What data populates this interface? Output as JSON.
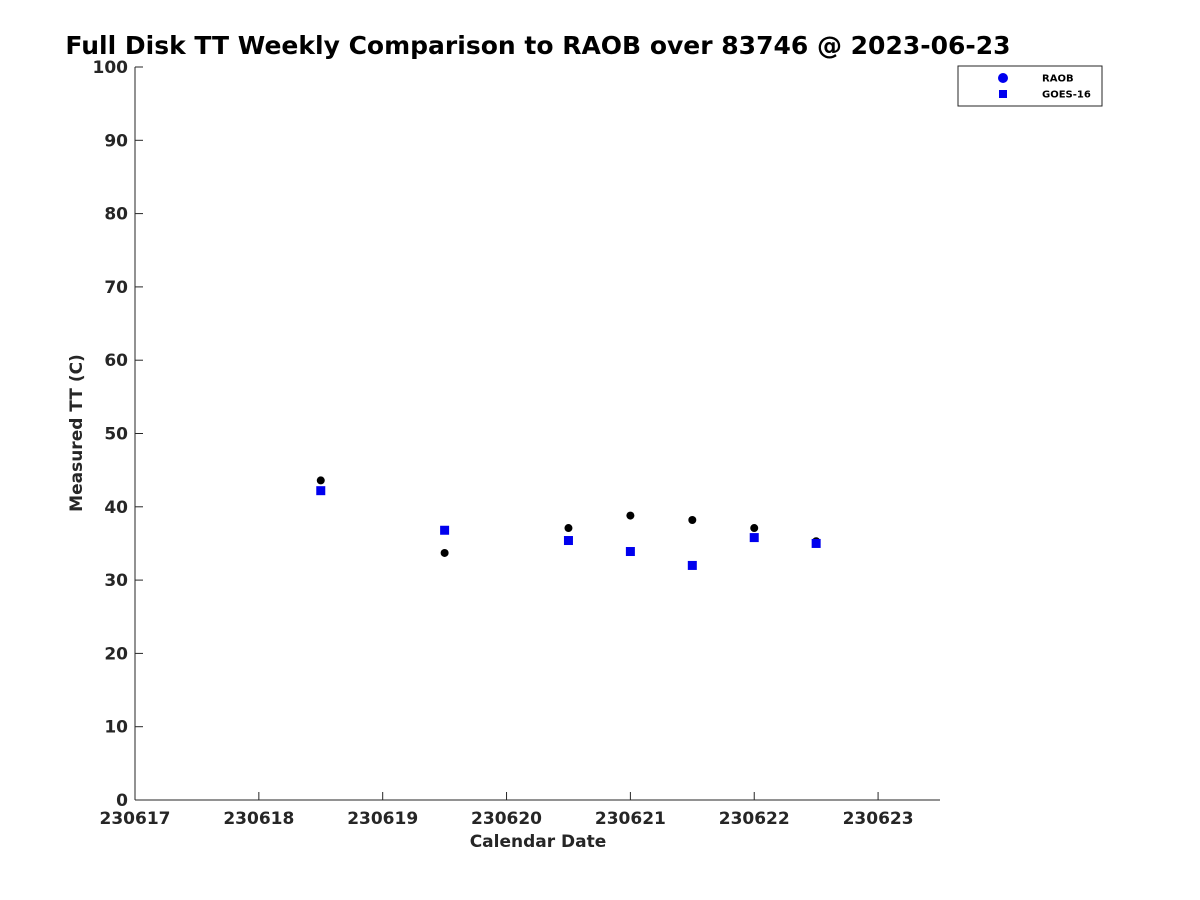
{
  "chart_data": {
    "type": "scatter",
    "title": "Full Disk TT Weekly Comparison to RAOB over 83746 @ 2023-06-23",
    "xlabel": "Calendar Date",
    "ylabel": "Measured TT (C)",
    "xlim": [
      "2023-06-17",
      "2023-06-23 12:00"
    ],
    "ylim": [
      0,
      100
    ],
    "x_ticks": [
      {
        "x": "2023-06-17",
        "label": "230617"
      },
      {
        "x": "2023-06-18",
        "label": "230618"
      },
      {
        "x": "2023-06-19",
        "label": "230619"
      },
      {
        "x": "2023-06-20",
        "label": "230620"
      },
      {
        "x": "2023-06-21",
        "label": "230621"
      },
      {
        "x": "2023-06-22",
        "label": "230622"
      },
      {
        "x": "2023-06-23",
        "label": "230623"
      }
    ],
    "y_ticks": [
      0,
      10,
      20,
      30,
      40,
      50,
      60,
      70,
      80,
      90,
      100
    ],
    "grid": false,
    "legend_position": "top-right",
    "series": [
      {
        "name": "RAOB",
        "marker": "circle",
        "color": "#000000",
        "legend_color": "#0000ee",
        "points": [
          {
            "x": "2023-06-18 12:00",
            "y": 43.6
          },
          {
            "x": "2023-06-19 12:00",
            "y": 33.7
          },
          {
            "x": "2023-06-20 12:00",
            "y": 37.1
          },
          {
            "x": "2023-06-21 00:00",
            "y": 38.8
          },
          {
            "x": "2023-06-21 12:00",
            "y": 38.2
          },
          {
            "x": "2023-06-22 00:00",
            "y": 37.1
          },
          {
            "x": "2023-06-22 12:00",
            "y": 35.3
          }
        ]
      },
      {
        "name": "GOES-16",
        "marker": "square",
        "color": "#0000ee",
        "legend_color": "#0000ee",
        "points": [
          {
            "x": "2023-06-18 12:00",
            "y": 42.2
          },
          {
            "x": "2023-06-19 12:00",
            "y": 36.8
          },
          {
            "x": "2023-06-20 12:00",
            "y": 35.4
          },
          {
            "x": "2023-06-21 00:00",
            "y": 33.9
          },
          {
            "x": "2023-06-21 12:00",
            "y": 32.0
          },
          {
            "x": "2023-06-22 00:00",
            "y": 35.8
          },
          {
            "x": "2023-06-22 12:00",
            "y": 35.0
          }
        ]
      }
    ]
  }
}
